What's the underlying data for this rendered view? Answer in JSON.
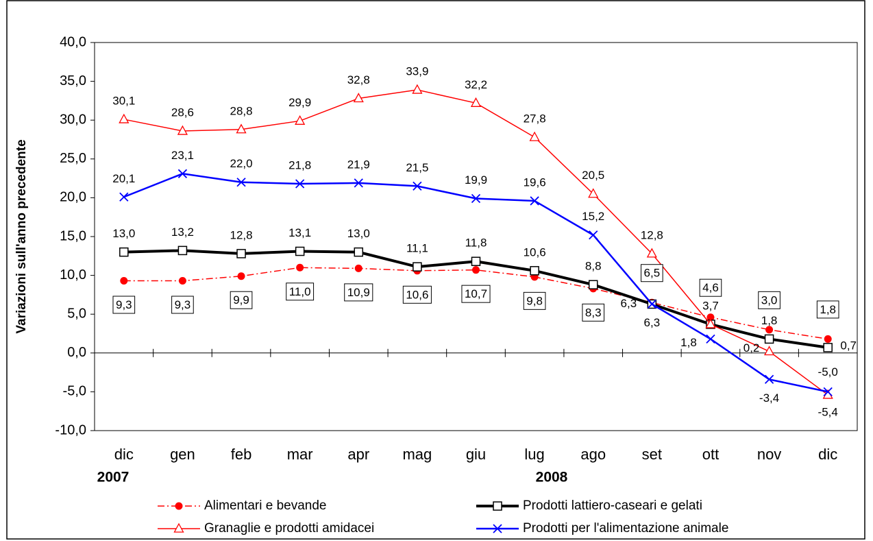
{
  "chart_data": {
    "type": "line",
    "y_label": "Variazioni sull'anno precedente",
    "categories": [
      "dic",
      "gen",
      "feb",
      "mar",
      "apr",
      "mag",
      "giu",
      "lug",
      "ago",
      "set",
      "ott",
      "nov",
      "dic"
    ],
    "annotations": [
      "2007",
      "2008"
    ],
    "ylim": [
      -10,
      40
    ],
    "yticks": [
      {
        "value": -10,
        "label": "-10,0"
      },
      {
        "value": -5,
        "label": "-5,0"
      },
      {
        "value": 0,
        "label": "0,0"
      },
      {
        "value": 5,
        "label": "5,0"
      },
      {
        "value": 10,
        "label": "10,0"
      },
      {
        "value": 15,
        "label": "15,0"
      },
      {
        "value": 20,
        "label": "20,0"
      },
      {
        "value": 25,
        "label": "25,0"
      },
      {
        "value": 30,
        "label": "30,0"
      },
      {
        "value": 35,
        "label": "35,0"
      },
      {
        "value": 40,
        "label": "40,0"
      }
    ],
    "series": [
      {
        "name": "Alimentari e bevande",
        "color": "#ff0000",
        "marker": "circle",
        "dash": "10,4,2,4",
        "width": 1.5,
        "values": [
          9.3,
          9.3,
          9.9,
          11.0,
          10.9,
          10.6,
          10.7,
          9.8,
          8.3,
          6.5,
          4.6,
          3.0,
          1.8
        ],
        "value_labels": [
          "9,3",
          "9,3",
          "9,9",
          "11,0",
          "10,9",
          "10,6",
          "10,7",
          "9,8",
          "8,3",
          "6,5",
          "4,6",
          "3,0",
          "1,8"
        ]
      },
      {
        "name": "Prodotti lattiero-caseari e gelati",
        "color": "#000000",
        "marker": "square",
        "width": 4,
        "values": [
          13.0,
          13.2,
          12.8,
          13.1,
          13.0,
          11.1,
          11.8,
          10.6,
          8.8,
          6.3,
          3.7,
          1.8,
          0.7
        ],
        "value_labels": [
          "13,0",
          "13,2",
          "12,8",
          "13,1",
          "13,0",
          "11,1",
          "11,8",
          "10,6",
          "8,8",
          "6,3",
          "3,7",
          "1,8",
          "0,7"
        ]
      },
      {
        "name": "Granaglie e prodotti amidacei",
        "color": "#ff0000",
        "marker": "triangle",
        "width": 1.5,
        "values": [
          30.1,
          28.6,
          28.8,
          29.9,
          32.8,
          33.9,
          32.2,
          27.8,
          20.5,
          12.8,
          3.7,
          0.2,
          -5.4
        ],
        "value_labels": [
          "30,1",
          "28,6",
          "28,8",
          "29,9",
          "32,8",
          "33,9",
          "32,2",
          "27,8",
          "20,5",
          "12,8",
          null,
          "0,2",
          "-5,4"
        ]
      },
      {
        "name": "Prodotti per l'alimentazione animale",
        "color": "#0000ff",
        "marker": "x",
        "width": 2.5,
        "values": [
          20.1,
          23.1,
          22.0,
          21.8,
          21.9,
          21.5,
          19.9,
          19.6,
          15.2,
          6.3,
          1.8,
          -3.4,
          -5.0
        ],
        "value_labels": [
          "20,1",
          "23,1",
          "22,0",
          "21,8",
          "21,9",
          "21,5",
          "19,9",
          "19,6",
          "15,2",
          "6,3",
          "1,8",
          "-3,4",
          "-5,0"
        ]
      }
    ]
  }
}
